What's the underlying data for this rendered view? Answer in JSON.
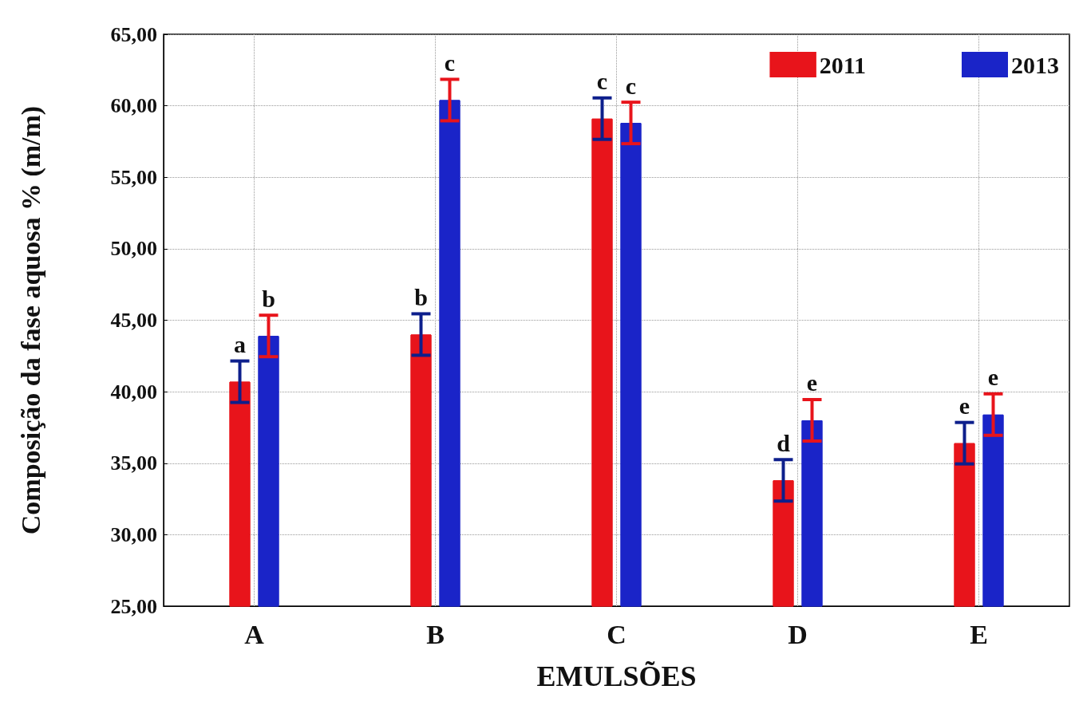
{
  "chart_data": {
    "type": "bar",
    "xlabel": "EMULSÕES",
    "ylabel": "Composição da fase aquosa % (m/m)",
    "categories": [
      "A",
      "B",
      "C",
      "D",
      "E"
    ],
    "series": [
      {
        "name": "2011",
        "color": "#e8141b",
        "values": [
          40.7,
          44.0,
          59.1,
          33.8,
          36.4
        ],
        "errors": [
          1.45,
          1.45,
          1.45,
          1.45,
          1.45
        ],
        "value_labels": [
          "a",
          "b",
          "c",
          "d",
          "e"
        ]
      },
      {
        "name": "2013",
        "color": "#1a24c8",
        "values": [
          43.9,
          60.4,
          58.8,
          38.0,
          38.4
        ],
        "errors": [
          1.45,
          1.45,
          1.45,
          1.45,
          1.45
        ],
        "value_labels": [
          "b",
          "c",
          "c",
          "e",
          "e"
        ]
      }
    ],
    "ylim": [
      25,
      65
    ],
    "yticks": [
      {
        "value": 25,
        "label": "25,00"
      },
      {
        "value": 30,
        "label": "30,00"
      },
      {
        "value": 35,
        "label": "35,00"
      },
      {
        "value": 40,
        "label": "40,00"
      },
      {
        "value": 45,
        "label": "45,00"
      },
      {
        "value": 50,
        "label": "50,00"
      },
      {
        "value": 55,
        "label": "55,00"
      },
      {
        "value": 60,
        "label": "60,00"
      },
      {
        "value": 65,
        "label": "65,00"
      }
    ],
    "grid": true,
    "legend": "top right"
  }
}
